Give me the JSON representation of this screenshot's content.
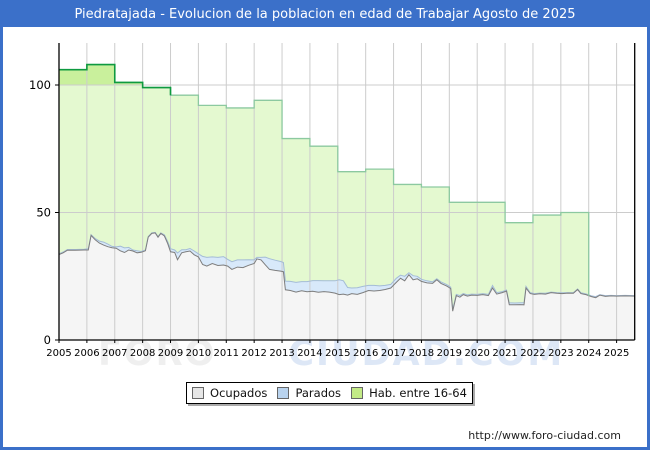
{
  "title_bar": {
    "title": "Piedratajada - Evolucion de la poblacion en edad de Trabajar Agosto de 2025",
    "bg": "#3b70c9",
    "text_color": "#ffffff"
  },
  "watermark": {
    "part1": "FORO",
    "part2": "CIUDAD.COM"
  },
  "footer": {
    "url": "http://www.foro-ciudad.com"
  },
  "legend": {
    "items": [
      {
        "label": "Ocupados",
        "fill": "#e6e6e6"
      },
      {
        "label": "Parados",
        "fill": "#b9d3ee"
      },
      {
        "label": "Hab. entre 16-64",
        "fill": "#c3ea86"
      }
    ]
  },
  "chart_data": {
    "type": "area",
    "title": "Piedratajada - Evolucion de la poblacion en edad de Trabajar Agosto de 2025",
    "xlabel": "",
    "ylabel": "",
    "x_ticks": [
      2005,
      2006,
      2007,
      2008,
      2009,
      2010,
      2011,
      2012,
      2013,
      2014,
      2015,
      2016,
      2017,
      2018,
      2019,
      2020,
      2021,
      2022,
      2023,
      2024,
      2025
    ],
    "y_ticks": [
      0,
      50,
      100
    ],
    "x_range": [
      2005,
      2025.65
    ],
    "y_range": [
      0,
      116.5
    ],
    "grid": true,
    "legend_position": "bottom",
    "colors": {
      "grid": "#cccccc",
      "axis": "#000000",
      "hab_fill": "#e4f9d0",
      "hab_fill_above_100": "#c9f09c",
      "hab_stroke": "#8cc9a0",
      "hab_stroke_above_100": "#0f9a40",
      "parados_fill": "#d8e9fa",
      "parados_stroke": "#a4bcd6",
      "ocupados_fill": "#f5f5f5",
      "ocupados_stroke": "#7d7d7d"
    },
    "hab_series": {
      "name": "Hab. entre 16-64",
      "type": "step-area",
      "start_year": 2005,
      "end_x": 2024,
      "values": [
        106,
        108,
        101,
        99,
        96,
        92,
        91,
        94,
        79,
        76,
        66,
        67,
        61,
        60,
        54,
        54,
        46,
        49,
        50
      ]
    },
    "monthly_x": [
      2005.0,
      2005.15,
      2005.3,
      2005.6,
      2005.9,
      2006.05,
      2006.15,
      2006.3,
      2006.45,
      2006.6,
      2006.75,
      2006.9,
      2007.05,
      2007.2,
      2007.35,
      2007.5,
      2007.65,
      2007.8,
      2007.95,
      2008.1,
      2008.2,
      2008.33,
      2008.45,
      2008.55,
      2008.65,
      2008.78,
      2008.9,
      2009.0,
      2009.15,
      2009.25,
      2009.4,
      2009.55,
      2009.7,
      2009.85,
      2010.0,
      2010.15,
      2010.3,
      2010.5,
      2010.7,
      2010.9,
      2011.05,
      2011.2,
      2011.4,
      2011.6,
      2011.8,
      2012.0,
      2012.1,
      2012.25,
      2012.4,
      2012.55,
      2012.75,
      2012.95,
      2013.05,
      2013.12,
      2013.3,
      2013.5,
      2013.7,
      2013.9,
      2014.1,
      2014.3,
      2014.5,
      2014.7,
      2014.9,
      2015.05,
      2015.2,
      2015.35,
      2015.5,
      2015.7,
      2015.9,
      2016.1,
      2016.3,
      2016.5,
      2016.7,
      2016.9,
      2017.1,
      2017.25,
      2017.4,
      2017.55,
      2017.7,
      2017.85,
      2018.0,
      2018.2,
      2018.4,
      2018.55,
      2018.7,
      2018.9,
      2019.05,
      2019.12,
      2019.25,
      2019.38,
      2019.5,
      2019.65,
      2019.8,
      2020.0,
      2020.2,
      2020.4,
      2020.55,
      2020.7,
      2020.9,
      2021.05,
      2021.15,
      2021.35,
      2021.55,
      2021.68,
      2021.75,
      2021.9,
      2022.05,
      2022.25,
      2022.45,
      2022.65,
      2022.85,
      2023.05,
      2023.25,
      2023.45,
      2023.6,
      2023.72,
      2023.9,
      2024.1,
      2024.25,
      2024.4,
      2024.6,
      2024.8,
      2025.0,
      2025.3,
      2025.65
    ],
    "series": [
      {
        "name": "Ocupados",
        "values": [
          33.5,
          34.2,
          35.2,
          35.2,
          35.3,
          35.3,
          41,
          39.3,
          38,
          37.2,
          36.6,
          36.2,
          36,
          35,
          34.3,
          35.3,
          34.9,
          34.2,
          34.4,
          35,
          40.3,
          41.8,
          42,
          40.3,
          41.8,
          40.8,
          37.8,
          34.6,
          34.3,
          31.5,
          34.2,
          34.6,
          34.9,
          33.4,
          32.6,
          29.6,
          29,
          30,
          29.2,
          29.4,
          29,
          27.7,
          28.6,
          28.4,
          29.3,
          30,
          31.8,
          31.4,
          29.5,
          27.7,
          27.3,
          27,
          26.8,
          19.7,
          19.4,
          18.8,
          19.3,
          18.9,
          19.1,
          18.7,
          19,
          18.8,
          18.4,
          17.8,
          18,
          17.6,
          18.2,
          17.9,
          18.6,
          19.4,
          19.2,
          19.4,
          19.8,
          20.4,
          22.6,
          24.2,
          23.2,
          25.6,
          23.6,
          24,
          23,
          22.4,
          22.2,
          23.6,
          22.2,
          21.2,
          20.2,
          11.3,
          17.4,
          16.8,
          17.8,
          17.2,
          17.6,
          17.5,
          17.8,
          17.4,
          20.4,
          18,
          18.6,
          19.2,
          13.8,
          13.8,
          13.9,
          13.8,
          20.4,
          18.2,
          17.9,
          18.1,
          18,
          18.6,
          18.3,
          18.2,
          18.4,
          18.3,
          19.8,
          18.2,
          17.8,
          17,
          16.6,
          17.6,
          17.1,
          17.3,
          17.2,
          17.3,
          17.2
        ]
      },
      {
        "name": "Parados",
        "stacked_on": "Ocupados",
        "values": [
          0.3,
          0.3,
          0.3,
          0.3,
          0.3,
          0.5,
          0.3,
          0.5,
          0.8,
          1.2,
          1,
          0.5,
          0.5,
          1.8,
          1.8,
          1,
          0.4,
          0.8,
          0.3,
          0.3,
          0.3,
          0.2,
          0.2,
          0.3,
          0.2,
          0.4,
          0.8,
          1.2,
          1,
          2.6,
          1.2,
          0.8,
          1,
          1.5,
          1.2,
          3.2,
          3.4,
          2.6,
          3.2,
          3.3,
          2.6,
          3,
          2.8,
          3,
          2.2,
          1.4,
          0.6,
          1,
          3,
          4.2,
          4,
          3.8,
          3.6,
          3.4,
          3.6,
          3.8,
          3.6,
          4,
          4.2,
          4.6,
          4.2,
          4.4,
          4.8,
          5.8,
          5.2,
          3,
          2.2,
          2.6,
          2.4,
          2,
          2.2,
          1.8,
          1.6,
          1.4,
          1.6,
          1.2,
          1.8,
          0.8,
          1.6,
          1,
          0.8,
          0.8,
          0.6,
          0.4,
          0.6,
          0.6,
          0.5,
          0.7,
          0.5,
          0.6,
          0.4,
          0.5,
          0.4,
          0.4,
          0.4,
          0.5,
          1,
          0.6,
          0.4,
          0.4,
          0.8,
          0.7,
          0.7,
          0.8,
          0.6,
          0.4,
          0.3,
          0.3,
          0.3,
          0.2,
          0.3,
          0.3,
          0.2,
          0.3,
          0.2,
          0.3,
          0.3,
          0.3,
          0.4,
          0.2,
          0.3,
          0.2,
          0.2,
          0.2,
          0.2
        ]
      }
    ]
  }
}
